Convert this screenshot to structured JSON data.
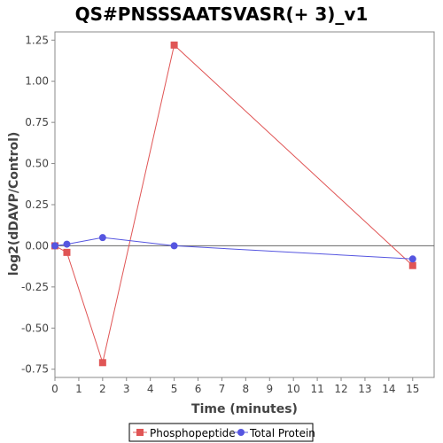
{
  "chart_data": {
    "type": "line",
    "title": "QS#PNSSSAATSVASR(+ 3)_v1",
    "xlabel": "Time (minutes)",
    "ylabel": "log2(dDAVP/Control)",
    "xlim": [
      0,
      15.9
    ],
    "ylim": [
      -0.8,
      1.3
    ],
    "xticks": [
      "0",
      "1",
      "2",
      "3",
      "4",
      "5",
      "6",
      "7",
      "8",
      "9",
      "10",
      "11",
      "12",
      "13",
      "14",
      "15"
    ],
    "yticks": [
      "-0.75",
      "-0.50",
      "-0.25",
      "0.00",
      "0.25",
      "0.50",
      "0.75",
      "1.00",
      "1.25"
    ],
    "grid": false,
    "legend_position": "bottom",
    "series": [
      {
        "name": "Phosphopeptide",
        "color": "#e05555",
        "marker": "square",
        "points": [
          {
            "x": 0,
            "y": 0.0
          },
          {
            "x": 0.5,
            "y": -0.04
          },
          {
            "x": 2,
            "y": -0.71
          },
          {
            "x": 5,
            "y": 1.22
          },
          {
            "x": 15,
            "y": -0.12
          }
        ]
      },
      {
        "name": "Total Protein",
        "color": "#5555e0",
        "marker": "circle",
        "points": [
          {
            "x": 0,
            "y": 0.0
          },
          {
            "x": 0.5,
            "y": 0.01
          },
          {
            "x": 2,
            "y": 0.05
          },
          {
            "x": 5,
            "y": 0.0
          },
          {
            "x": 15,
            "y": -0.08
          }
        ]
      }
    ]
  }
}
